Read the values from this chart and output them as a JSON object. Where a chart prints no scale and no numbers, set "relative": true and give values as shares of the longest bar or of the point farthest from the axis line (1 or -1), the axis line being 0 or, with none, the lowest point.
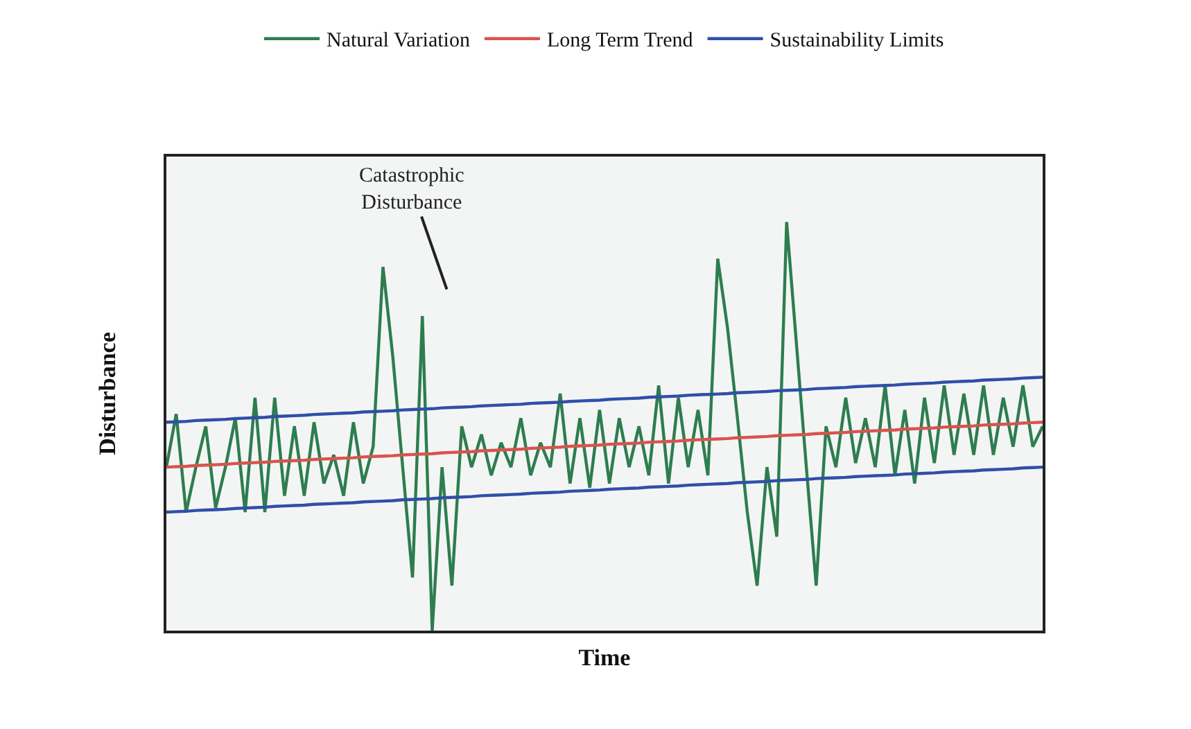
{
  "chart_data": {
    "type": "line",
    "relative": true,
    "xlabel": "Time",
    "ylabel": "Disturbance",
    "legend": "top",
    "marker": "none",
    "line_style": "solid",
    "annotations": [
      "Catastrophic\nDisturbance"
    ],
    "categories": [
      null,
      null,
      null,
      null,
      null,
      null,
      null,
      null,
      null,
      null,
      null,
      null,
      null,
      null,
      null,
      null,
      null,
      null,
      null,
      null,
      null,
      null,
      null,
      null,
      null,
      null,
      null,
      null,
      null,
      null,
      null,
      null,
      null,
      null,
      null,
      null,
      null,
      null,
      null,
      null,
      null,
      null,
      null,
      null,
      null,
      null,
      null,
      null,
      null,
      null,
      null,
      null,
      null,
      null,
      null,
      null,
      null,
      null,
      null,
      null,
      null,
      null,
      null,
      null,
      null,
      null,
      null,
      null,
      null,
      null,
      null,
      null,
      null,
      null,
      null,
      null,
      null,
      null,
      null,
      null,
      null,
      null,
      null,
      null,
      null,
      null,
      null,
      null,
      null,
      null
    ],
    "series": [
      {
        "name": "Natural Variation",
        "color": "#2e7d4f",
        "values": [
          0.4,
          0.53,
          0.29,
          0.4,
          0.5,
          0.3,
          0.4,
          0.52,
          0.29,
          0.57,
          0.29,
          0.57,
          0.33,
          0.5,
          0.33,
          0.51,
          0.36,
          0.43,
          0.33,
          0.51,
          0.36,
          0.45,
          0.89,
          0.67,
          0.4,
          0.13,
          0.77,
          0,
          0.4,
          0.11,
          0.5,
          0.4,
          0.48,
          0.38,
          0.46,
          0.4,
          0.52,
          0.38,
          0.46,
          0.4,
          0.58,
          0.36,
          0.52,
          0.35,
          0.54,
          0.36,
          0.52,
          0.4,
          0.5,
          0.38,
          0.6,
          0.36,
          0.57,
          0.4,
          0.54,
          0.38,
          0.91,
          0.74,
          0.52,
          0.29,
          0.11,
          0.4,
          0.23,
          1,
          0.7,
          0.4,
          0.11,
          0.5,
          0.4,
          0.57,
          0.41,
          0.52,
          0.4,
          0.6,
          0.38,
          0.54,
          0.36,
          0.57,
          0.41,
          0.6,
          0.43,
          0.58,
          0.43,
          0.6,
          0.43,
          0.57,
          0.45,
          0.6,
          0.45,
          0.5
        ]
      },
      {
        "name": "Long Term Trend",
        "color": "#d9534f",
        "values": [
          0.4,
          0.401,
          0.402,
          0.404,
          0.405,
          0.406,
          0.407,
          0.409,
          0.41,
          0.411,
          0.412,
          0.414,
          0.415,
          0.416,
          0.417,
          0.419,
          0.42,
          0.421,
          0.422,
          0.423,
          0.425,
          0.426,
          0.427,
          0.428,
          0.43,
          0.431,
          0.432,
          0.433,
          0.435,
          0.436,
          0.437,
          0.438,
          0.44,
          0.441,
          0.442,
          0.443,
          0.444,
          0.446,
          0.447,
          0.448,
          0.449,
          0.451,
          0.452,
          0.453,
          0.454,
          0.456,
          0.457,
          0.458,
          0.459,
          0.461,
          0.462,
          0.463,
          0.464,
          0.466,
          0.467,
          0.468,
          0.469,
          0.47,
          0.472,
          0.473,
          0.474,
          0.475,
          0.477,
          0.478,
          0.479,
          0.48,
          0.482,
          0.483,
          0.484,
          0.485,
          0.487,
          0.488,
          0.489,
          0.49,
          0.491,
          0.493,
          0.494,
          0.495,
          0.496,
          0.498,
          0.499,
          0.5,
          0.501,
          0.503,
          0.504,
          0.505,
          0.506,
          0.508,
          0.509,
          0.51
        ]
      },
      {
        "name": "Sustainability Limits",
        "color": "#2f4fa8",
        "values": [
          0.51,
          0.511,
          0.512,
          0.514,
          0.515,
          0.516,
          0.517,
          0.519,
          0.52,
          0.521,
          0.522,
          0.524,
          0.525,
          0.526,
          0.527,
          0.529,
          0.53,
          0.531,
          0.532,
          0.533,
          0.535,
          0.536,
          0.537,
          0.538,
          0.54,
          0.541,
          0.542,
          0.543,
          0.545,
          0.546,
          0.547,
          0.548,
          0.55,
          0.551,
          0.552,
          0.553,
          0.554,
          0.556,
          0.557,
          0.558,
          0.559,
          0.561,
          0.562,
          0.563,
          0.564,
          0.566,
          0.567,
          0.568,
          0.569,
          0.571,
          0.572,
          0.573,
          0.574,
          0.576,
          0.577,
          0.578,
          0.579,
          0.58,
          0.582,
          0.583,
          0.584,
          0.585,
          0.587,
          0.588,
          0.589,
          0.59,
          0.592,
          0.593,
          0.594,
          0.595,
          0.597,
          0.598,
          0.599,
          0.6,
          0.601,
          0.603,
          0.604,
          0.605,
          0.606,
          0.608,
          0.609,
          0.61,
          0.611,
          0.613,
          0.614,
          0.615,
          0.616,
          0.618,
          0.619,
          0.62
        ]
      },
      {
        "color": "#2f4fa8",
        "values": [
          0.29,
          0.291,
          0.292,
          0.294,
          0.295,
          0.296,
          0.297,
          0.299,
          0.3,
          0.301,
          0.302,
          0.304,
          0.305,
          0.306,
          0.307,
          0.309,
          0.31,
          0.311,
          0.312,
          0.313,
          0.315,
          0.316,
          0.317,
          0.318,
          0.32,
          0.321,
          0.322,
          0.323,
          0.325,
          0.326,
          0.327,
          0.328,
          0.33,
          0.331,
          0.332,
          0.333,
          0.334,
          0.336,
          0.337,
          0.338,
          0.339,
          0.341,
          0.342,
          0.343,
          0.344,
          0.346,
          0.347,
          0.348,
          0.349,
          0.351,
          0.352,
          0.353,
          0.354,
          0.356,
          0.357,
          0.358,
          0.359,
          0.36,
          0.362,
          0.363,
          0.364,
          0.365,
          0.367,
          0.368,
          0.369,
          0.37,
          0.372,
          0.373,
          0.374,
          0.375,
          0.377,
          0.378,
          0.379,
          0.38,
          0.381,
          0.383,
          0.384,
          0.385,
          0.386,
          0.388,
          0.389,
          0.39,
          0.391,
          0.393,
          0.394,
          0.395,
          0.396,
          0.398,
          0.399,
          0.4
        ]
      }
    ]
  }
}
